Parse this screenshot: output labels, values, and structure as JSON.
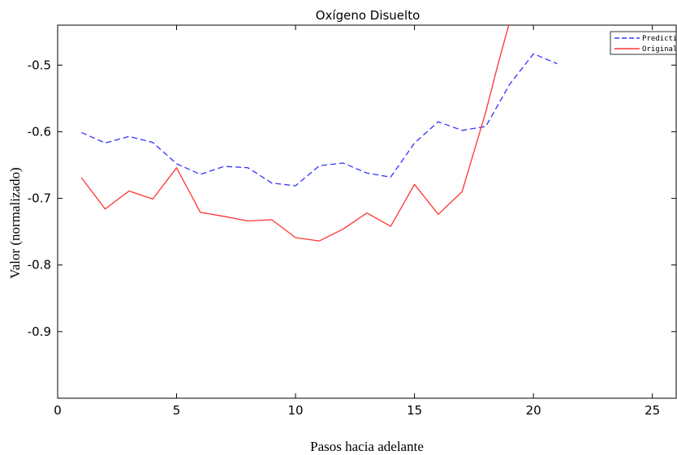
{
  "chart_data": {
    "type": "line",
    "title": "Oxígeno Disuelto",
    "xlabel": "Pasos hacia adelante",
    "ylabel": "Valor (normalizado)",
    "xlim": [
      0,
      26
    ],
    "ylim": [
      -1.0,
      -0.44
    ],
    "xticks": [
      0,
      5,
      10,
      15,
      20,
      25
    ],
    "yticks": [
      -0.9,
      -0.8,
      -0.7,
      -0.6,
      -0.5
    ],
    "xtick_labels": [
      "0",
      "5",
      "10",
      "15",
      "20",
      "25"
    ],
    "ytick_labels": [
      "-0.9",
      "-0.8",
      "-0.7",
      "-0.6",
      "-0.5"
    ],
    "legend_position": "top-right",
    "grid": false,
    "series": [
      {
        "name": "Prediction",
        "color": "#3333ff",
        "dash": true,
        "x": [
          1,
          2,
          3,
          4,
          5,
          6,
          7,
          8,
          9,
          10,
          11,
          12,
          13,
          14,
          15,
          16,
          17,
          18,
          19,
          20,
          21
        ],
        "y": [
          -0.601,
          -0.617,
          -0.607,
          -0.616,
          -0.648,
          -0.664,
          -0.652,
          -0.654,
          -0.677,
          -0.681,
          -0.651,
          -0.647,
          -0.662,
          -0.668,
          -0.617,
          -0.585,
          -0.598,
          -0.592,
          -0.529,
          -0.483,
          -0.498
        ]
      },
      {
        "name": "Original",
        "color": "#ff3333",
        "dash": false,
        "x": [
          1,
          2,
          3,
          4,
          5,
          6,
          7,
          8,
          9,
          10,
          11,
          12,
          13,
          14,
          15,
          16,
          17,
          18,
          18.5,
          19
        ],
        "y": [
          -0.669,
          -0.716,
          -0.689,
          -0.701,
          -0.654,
          -0.721,
          -0.727,
          -0.734,
          -0.732,
          -0.759,
          -0.764,
          -0.746,
          -0.722,
          -0.742,
          -0.679,
          -0.724,
          -0.69,
          -0.57,
          -0.5,
          -0.435
        ]
      }
    ]
  }
}
